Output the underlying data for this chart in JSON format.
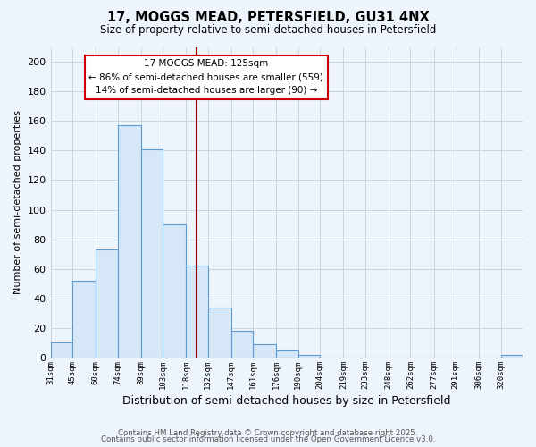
{
  "title": "17, MOGGS MEAD, PETERSFIELD, GU31 4NX",
  "subtitle": "Size of property relative to semi-detached houses in Petersfield",
  "xlabel": "Distribution of semi-detached houses by size in Petersfield",
  "ylabel": "Number of semi-detached properties",
  "bin_labels": [
    "31sqm",
    "45sqm",
    "60sqm",
    "74sqm",
    "89sqm",
    "103sqm",
    "118sqm",
    "132sqm",
    "147sqm",
    "161sqm",
    "176sqm",
    "190sqm",
    "204sqm",
    "219sqm",
    "233sqm",
    "248sqm",
    "262sqm",
    "277sqm",
    "291sqm",
    "306sqm",
    "320sqm"
  ],
  "bin_values": [
    10,
    52,
    73,
    157,
    141,
    90,
    62,
    34,
    18,
    9,
    5,
    2,
    0,
    0,
    0,
    0,
    0,
    0,
    0,
    0,
    2
  ],
  "bin_edges": [
    31,
    45,
    60,
    74,
    89,
    103,
    118,
    132,
    147,
    161,
    176,
    190,
    204,
    219,
    233,
    248,
    262,
    277,
    291,
    306,
    320,
    334
  ],
  "property_size": 125,
  "pct_smaller": 86,
  "count_smaller": 559,
  "pct_larger": 14,
  "count_larger": 90,
  "bar_facecolor": "#d6e8f7",
  "bar_edgecolor": "#5b9bd5",
  "vline_color": "#990000",
  "annotation_box_edgecolor": "#cc0000",
  "grid_color": "#c8d4e0",
  "background_color": "#eef4fb",
  "ylim": [
    0,
    210
  ],
  "yticks": [
    0,
    20,
    40,
    60,
    80,
    100,
    120,
    140,
    160,
    180,
    200
  ],
  "footer1": "Contains HM Land Registry data © Crown copyright and database right 2025.",
  "footer2": "Contains public sector information licensed under the Open Government Licence v3.0."
}
